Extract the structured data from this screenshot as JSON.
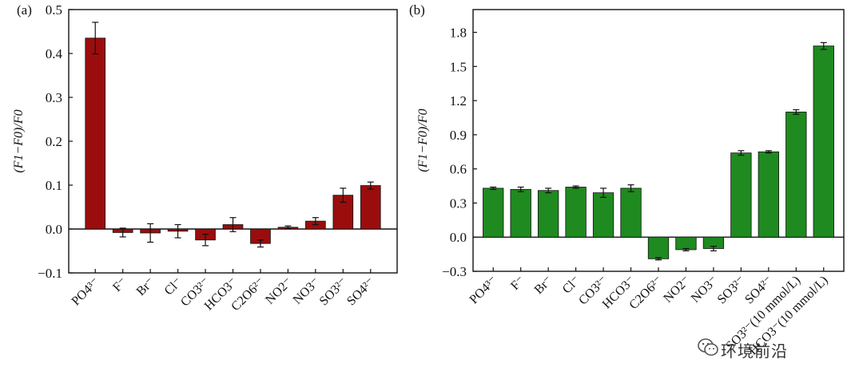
{
  "panels": [
    {
      "label": "(a)",
      "ylabel": "(F1−F0)/F0",
      "chart_data": {
        "type": "bar",
        "color": "#9b0d0d",
        "categories": [
          "PO4³⁻",
          "F⁻",
          "Br⁻",
          "Cl⁻",
          "CO3²⁻",
          "HCO3⁻",
          "C2O6²⁻",
          "NO2⁻",
          "NO3⁻",
          "SO3²⁻",
          "SO4²⁻"
        ],
        "values": [
          0.435,
          -0.008,
          -0.009,
          -0.005,
          -0.025,
          0.01,
          -0.033,
          0.004,
          0.018,
          0.077,
          0.099
        ],
        "errors": [
          0.036,
          0.01,
          0.021,
          0.015,
          0.013,
          0.016,
          0.008,
          0.003,
          0.008,
          0.016,
          0.008
        ],
        "ylim": [
          -0.1,
          0.5
        ],
        "yticks": [
          "−0.1",
          "0.0",
          "0.1",
          "0.2",
          "0.3",
          "0.4",
          "0.5"
        ]
      }
    },
    {
      "label": "(b)",
      "ylabel": "(F1−F0)/F0",
      "chart_data": {
        "type": "bar",
        "color": "#1f8a1f",
        "categories": [
          "PO4³⁻",
          "F⁻",
          "Br⁻",
          "Cl⁻",
          "CO3²⁻",
          "HCO3⁻",
          "C2O6²⁻",
          "NO2⁻",
          "NO3⁻",
          "SO3²⁻",
          "SO4²⁻",
          "SO3²⁻(10 mmol/L)",
          "HCO3⁻(10 mmol/L)"
        ],
        "values": [
          0.43,
          0.42,
          0.41,
          0.44,
          0.39,
          0.43,
          -0.19,
          -0.11,
          -0.1,
          0.74,
          0.75,
          1.1,
          1.68
        ],
        "errors": [
          0.01,
          0.02,
          0.02,
          0.01,
          0.04,
          0.03,
          0.01,
          0.01,
          0.02,
          0.02,
          0.01,
          0.02,
          0.03
        ],
        "ylim": [
          -0.3,
          2.0
        ],
        "yticks": [
          "−0.3",
          "0.0",
          "0.3",
          "0.6",
          "0.9",
          "1.2",
          "1.5",
          "1.8"
        ]
      }
    }
  ],
  "watermark": "环境前沿"
}
